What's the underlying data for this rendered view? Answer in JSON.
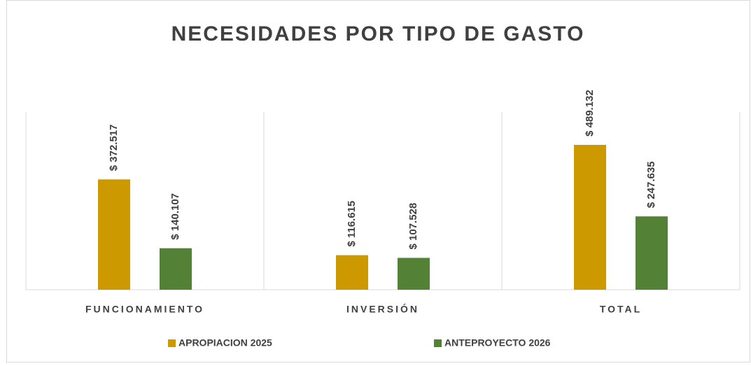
{
  "chart_data": {
    "type": "bar",
    "title": "NECESIDADES POR TIPO DE GASTO",
    "categories": [
      "FUNCIONAMIENTO",
      "INVERSIÓN",
      "TOTAL"
    ],
    "series": [
      {
        "name": "APROPIACION 2025",
        "color": "#cc9900",
        "values": [
          372517,
          116615,
          489132
        ],
        "value_labels": [
          "$ 372.517",
          "$ 116.615",
          "$ 489.132"
        ]
      },
      {
        "name": "ANTEPROYECTO 2026",
        "color": "#538135",
        "values": [
          140107,
          107528,
          247635
        ],
        "value_labels": [
          "$ 140.107",
          "$ 107.528",
          "$ 247.635"
        ]
      }
    ],
    "legend": "bottom"
  }
}
